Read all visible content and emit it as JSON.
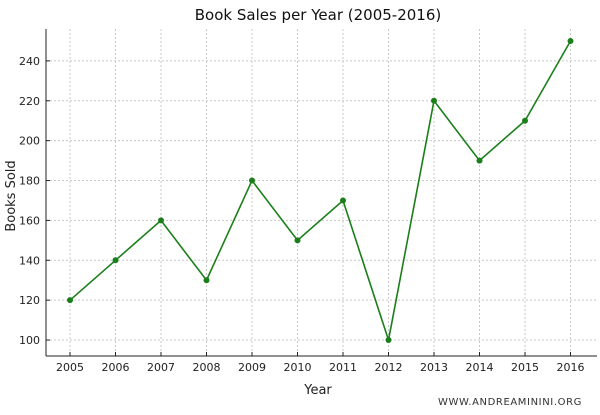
{
  "chart_data": {
    "type": "line",
    "title": "Book Sales per Year (2005-2016)",
    "xlabel": "Year",
    "ylabel": "Books Sold",
    "x": [
      "2005",
      "2006",
      "2007",
      "2008",
      "2009",
      "2010",
      "2011",
      "2012",
      "2013",
      "2014",
      "2015",
      "2016"
    ],
    "series": [
      {
        "values": [
          120,
          140,
          160,
          130,
          180,
          150,
          170,
          100,
          220,
          190,
          210,
          250
        ]
      }
    ],
    "yticks": [
      100,
      120,
      140,
      160,
      180,
      200,
      220,
      240
    ],
    "ylim": [
      92,
      256
    ],
    "grid": true,
    "line_color": "#1a7f1a",
    "marker": "circle"
  },
  "watermark": "WWW.ANDREAMININI.ORG"
}
